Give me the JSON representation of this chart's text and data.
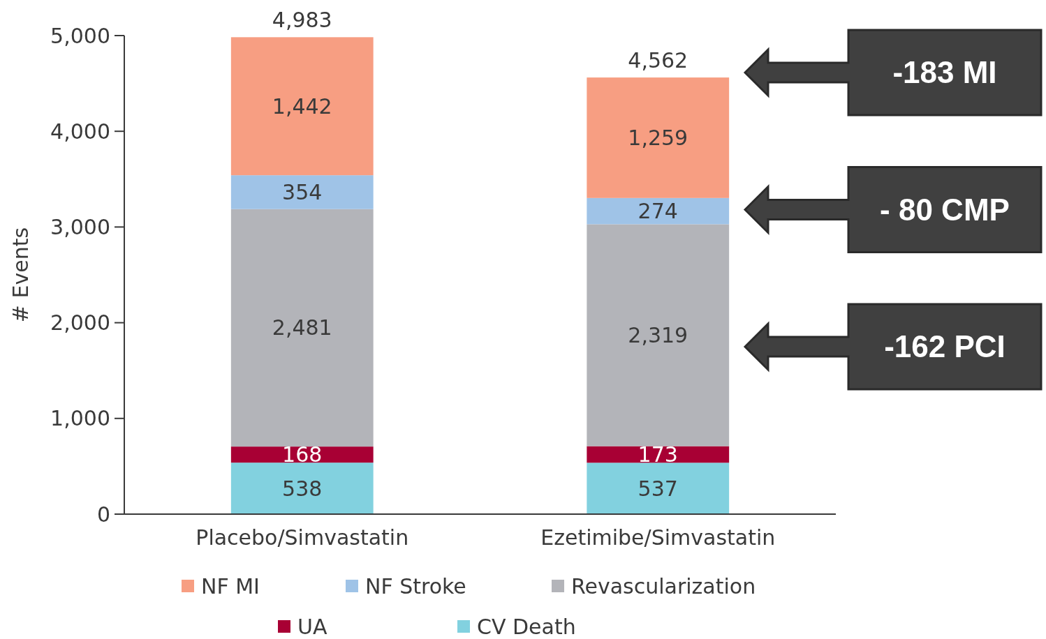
{
  "chart_data": {
    "type": "bar",
    "stacked": true,
    "ylabel": "# Events",
    "categories": [
      "Placebo/Simvastatin",
      "Ezetimibe/Simvastatin"
    ],
    "series": [
      {
        "name": "CV Death",
        "color": "#82d1df",
        "values": [
          538,
          537
        ],
        "value_labels": [
          "538",
          "537"
        ]
      },
      {
        "name": "UA",
        "color": "#a80034",
        "values": [
          168,
          173
        ],
        "value_labels": [
          "168",
          "173"
        ]
      },
      {
        "name": "Revascularization",
        "color": "#b3b4b9",
        "values": [
          2481,
          2319
        ],
        "value_labels": [
          "2,481",
          "2,319"
        ]
      },
      {
        "name": "NF Stroke",
        "color": "#9fc3e7",
        "values": [
          354,
          274
        ],
        "value_labels": [
          "354",
          "274"
        ]
      },
      {
        "name": "NF MI",
        "color": "#f79e82",
        "values": [
          1442,
          1259
        ],
        "value_labels": [
          "1,442",
          "1,259"
        ]
      }
    ],
    "totals": [
      "4,983",
      "4,562"
    ],
    "ylim": [
      0,
      5000
    ],
    "yticks": [
      {
        "value": 0,
        "label": "0"
      },
      {
        "value": 1000,
        "label": "1,000"
      },
      {
        "value": 2000,
        "label": "2,000"
      },
      {
        "value": 3000,
        "label": "3,000"
      },
      {
        "value": 4000,
        "label": "4,000"
      },
      {
        "value": 5000,
        "label": "5,000"
      }
    ],
    "grid": false,
    "legend": "bottom",
    "annotations": [
      "-183 MI",
      "- 80 CMP",
      "-162 PCI"
    ]
  }
}
